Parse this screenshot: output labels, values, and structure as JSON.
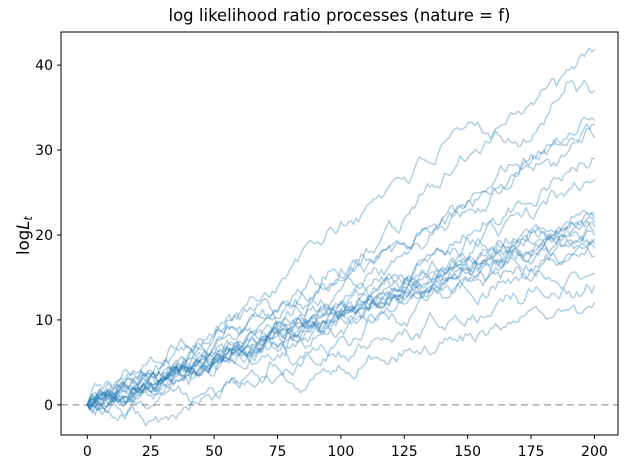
{
  "chart_data": {
    "type": "line",
    "title": "log likelihood ratio processes (nature = f)",
    "xlabel": "",
    "ylabel": {
      "prefix": "log",
      "variable": "L",
      "subscript": "t"
    },
    "xlim": [
      -10.4,
      209.3
    ],
    "ylim": [
      -3.55,
      43.9
    ],
    "xticks": [
      0,
      25,
      50,
      75,
      100,
      125,
      150,
      175,
      200
    ],
    "yticks": [
      0,
      10,
      20,
      30,
      40
    ],
    "grid": false,
    "legend": null,
    "line_color": "#1f77b4",
    "line_alpha": 0.35,
    "line_width": 1.5,
    "zero_line": {
      "y": 0,
      "color": "#b3b3b3",
      "dash": [
        7,
        4.5
      ],
      "width": 1.6
    },
    "x_anchor_step": 10,
    "render_jitter": {
      "amplitude": 0.8
    },
    "series": [
      {
        "name": "path-1",
        "seed": 101,
        "values": [
          0,
          1.8,
          3.2,
          4.6,
          6.8,
          8.4,
          10.8,
          13.2,
          16.0,
          19.0,
          21.6,
          23.4,
          26.2,
          28.6,
          30.8,
          33.2,
          31.9,
          34.6,
          37.2,
          39.4,
          41.8
        ]
      },
      {
        "name": "path-2",
        "seed": 102,
        "values": [
          0,
          0.8,
          2.4,
          3.8,
          5.4,
          6.6,
          8.2,
          10.0,
          11.8,
          14.2,
          16.0,
          18.4,
          21.0,
          23.8,
          26.4,
          29.0,
          31.6,
          30.4,
          33.0,
          38.0,
          37.0
        ]
      },
      {
        "name": "path-3",
        "seed": 103,
        "values": [
          0,
          1.4,
          2.6,
          4.0,
          5.6,
          7.0,
          8.4,
          10.0,
          11.4,
          13.0,
          14.6,
          16.2,
          18.0,
          20.0,
          22.0,
          24.0,
          26.0,
          28.2,
          30.0,
          32.0,
          33.5
        ]
      },
      {
        "name": "path-4",
        "seed": 104,
        "values": [
          0,
          2.0,
          3.8,
          5.2,
          6.8,
          8.0,
          9.2,
          10.6,
          12.0,
          13.4,
          15.0,
          17.0,
          18.8,
          20.2,
          22.0,
          24.0,
          25.6,
          27.2,
          29.6,
          31.2,
          33.0
        ]
      },
      {
        "name": "path-5",
        "seed": 105,
        "values": [
          0,
          0.9,
          2.0,
          3.1,
          4.5,
          6.0,
          7.5,
          9.0,
          10.5,
          12.0,
          13.5,
          15.2,
          17.0,
          19.0,
          21.0,
          23.0,
          25.0,
          27.0,
          28.6,
          30.0,
          31.5
        ]
      },
      {
        "name": "path-6",
        "seed": 106,
        "values": [
          0,
          0.5,
          1.6,
          3.0,
          4.0,
          5.2,
          6.6,
          8.0,
          9.2,
          10.6,
          12.0,
          13.6,
          15.0,
          16.6,
          18.2,
          20.0,
          22.0,
          24.0,
          25.6,
          27.4,
          29.0
        ]
      },
      {
        "name": "path-7",
        "seed": 107,
        "values": [
          0,
          1.0,
          2.0,
          3.0,
          4.2,
          5.6,
          7.0,
          8.2,
          9.6,
          11.0,
          12.2,
          13.6,
          15.0,
          16.6,
          18.0,
          19.6,
          21.0,
          22.6,
          24.0,
          25.4,
          26.5
        ]
      },
      {
        "name": "path-8",
        "seed": 108,
        "values": [
          0,
          1.2,
          2.2,
          3.4,
          4.4,
          5.6,
          6.8,
          7.8,
          9.0,
          10.2,
          11.2,
          12.4,
          13.6,
          14.6,
          15.8,
          17.0,
          18.0,
          19.2,
          20.4,
          21.4,
          22.5
        ]
      },
      {
        "name": "path-9",
        "seed": 109,
        "values": [
          0,
          0.6,
          1.8,
          2.6,
          4.0,
          5.0,
          6.4,
          7.4,
          8.8,
          9.8,
          11.2,
          12.2,
          13.6,
          14.6,
          16.0,
          17.0,
          18.4,
          19.4,
          20.8,
          21.2,
          22.0
        ]
      },
      {
        "name": "path-10",
        "seed": 110,
        "values": [
          0,
          1.5,
          2.4,
          3.6,
          4.8,
          6.0,
          7.0,
          8.4,
          9.4,
          10.6,
          11.8,
          12.8,
          14.0,
          15.2,
          16.2,
          17.4,
          18.6,
          19.6,
          20.2,
          20.8,
          21.5
        ]
      },
      {
        "name": "path-11",
        "seed": 111,
        "values": [
          0,
          0.4,
          1.4,
          2.4,
          3.6,
          4.6,
          5.8,
          7.0,
          8.0,
          9.2,
          10.4,
          11.4,
          12.6,
          13.8,
          14.8,
          16.0,
          17.2,
          18.2,
          19.4,
          20.2,
          21.0
        ]
      },
      {
        "name": "path-12",
        "seed": 112,
        "values": [
          0,
          1.0,
          2.0,
          3.2,
          4.2,
          5.4,
          6.4,
          7.6,
          8.6,
          9.8,
          10.8,
          12.0,
          13.0,
          14.2,
          15.2,
          16.4,
          17.4,
          18.6,
          19.2,
          19.8,
          20.5
        ]
      },
      {
        "name": "path-13",
        "seed": 113,
        "values": [
          0,
          0.8,
          1.6,
          2.8,
          3.8,
          5.0,
          6.0,
          7.2,
          8.2,
          9.4,
          10.4,
          11.6,
          12.6,
          13.8,
          14.8,
          16.0,
          17.0,
          18.0,
          18.8,
          19.4,
          20.0
        ]
      },
      {
        "name": "path-14",
        "seed": 114,
        "values": [
          0,
          1.3,
          2.2,
          3.3,
          4.4,
          5.5,
          6.6,
          7.7,
          8.8,
          9.9,
          11.0,
          12.0,
          13.0,
          14.0,
          15.0,
          16.0,
          17.0,
          18.0,
          18.6,
          19.0,
          19.5
        ]
      },
      {
        "name": "path-15",
        "seed": 115,
        "values": [
          0,
          0.5,
          1.5,
          2.5,
          3.5,
          4.8,
          5.8,
          7.0,
          8.0,
          9.2,
          10.2,
          11.4,
          12.4,
          13.4,
          14.4,
          15.6,
          16.6,
          17.6,
          18.2,
          18.6,
          19.0
        ]
      },
      {
        "name": "path-16",
        "seed": 116,
        "values": [
          0,
          1.6,
          3.0,
          4.6,
          6.2,
          8.0,
          10.0,
          12.5,
          5.0,
          6.5,
          8.0,
          9.5,
          11.0,
          12.5,
          13.5,
          14.5,
          15.5,
          16.5,
          17.0,
          17.8,
          18.5
        ]
      },
      {
        "name": "path-17",
        "seed": 117,
        "values": [
          0,
          0.7,
          1.7,
          2.9,
          3.9,
          5.1,
          6.1,
          7.3,
          8.3,
          9.5,
          10.5,
          11.5,
          12.3,
          13.1,
          14.0,
          14.8,
          15.6,
          16.2,
          16.7,
          17.1,
          17.5
        ]
      },
      {
        "name": "path-18",
        "seed": 118,
        "values": [
          0,
          -1.5,
          0.2,
          1.2,
          2.4,
          3.4,
          4.6,
          5.6,
          6.6,
          7.8,
          8.8,
          9.8,
          10.8,
          11.8,
          12.6,
          13.4,
          14.0,
          14.6,
          15.0,
          15.2,
          15.5
        ]
      },
      {
        "name": "path-19",
        "seed": 119,
        "values": [
          0,
          0.6,
          -0.8,
          -1.6,
          -0.6,
          1.0,
          2.0,
          3.0,
          3.8,
          4.8,
          5.6,
          6.6,
          7.4,
          8.4,
          9.2,
          10.2,
          11.0,
          12.0,
          12.8,
          13.4,
          14.0
        ]
      },
      {
        "name": "path-20",
        "seed": 120,
        "values": [
          0,
          0.3,
          0.8,
          1.4,
          0.6,
          1.6,
          2.4,
          3.2,
          2.6,
          3.6,
          4.2,
          5.0,
          5.6,
          6.4,
          7.2,
          8.2,
          9.0,
          9.8,
          10.6,
          11.2,
          12.0
        ]
      }
    ]
  }
}
